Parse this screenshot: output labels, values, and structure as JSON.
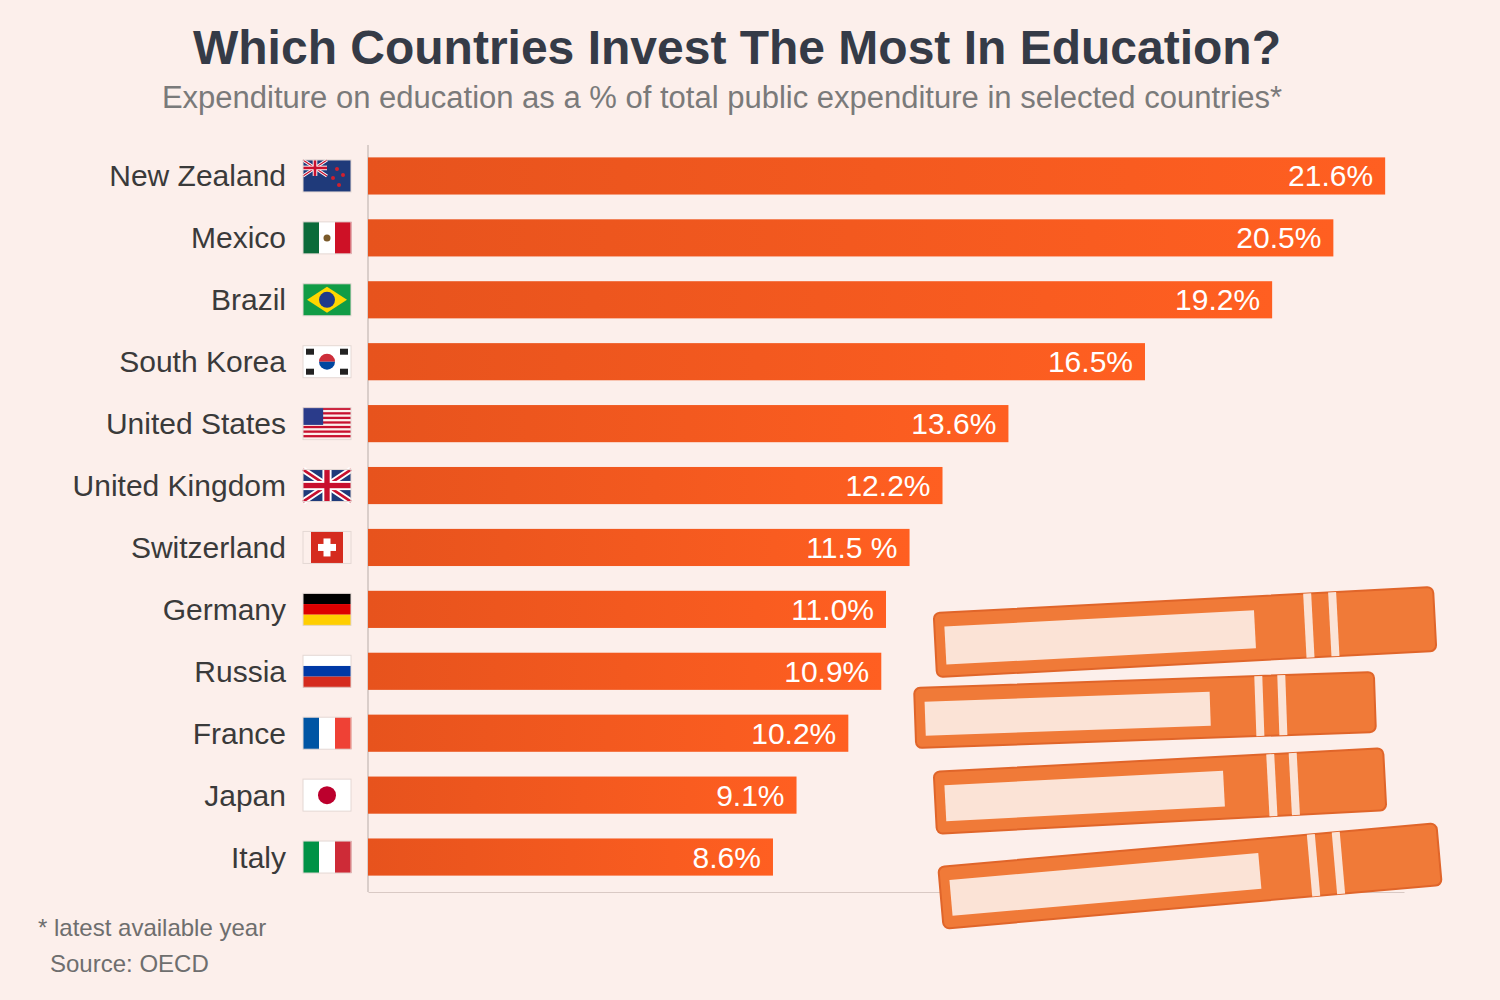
{
  "chart_data": {
    "type": "bar",
    "orientation": "horizontal",
    "title": "Which Countries Invest The Most In Education?",
    "subtitle": "Expenditure on education as a % of total public expenditure in selected countries*",
    "categories": [
      "New Zealand",
      "Mexico",
      "Brazil",
      "South Korea",
      "United States",
      "United Kingdom",
      "Switzerland",
      "Germany",
      "Russia",
      "France",
      "Japan",
      "Italy"
    ],
    "values": [
      21.6,
      20.5,
      19.2,
      16.5,
      13.6,
      12.2,
      11.5,
      11.0,
      10.9,
      10.2,
      9.1,
      8.6
    ],
    "value_labels": [
      "21.6%",
      "20.5%",
      "19.2%",
      "16.5%",
      "13.6%",
      "12.2%",
      "11.5 %",
      "11.0%",
      "10.9%",
      "10.2%",
      "9.1%",
      "8.6%"
    ],
    "color": "#f4581f",
    "xlim": [
      0,
      22
    ],
    "data_labels": true,
    "tick_labels": false,
    "grid": false,
    "annotations": [
      "* latest available year",
      "Source: OECD"
    ]
  }
}
